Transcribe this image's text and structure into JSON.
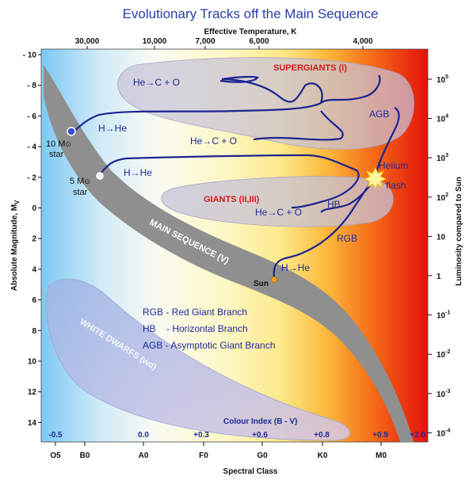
{
  "title": "Evolutionary Tracks off the Main Sequence",
  "top_axis": {
    "label": "Effective Temperature, K",
    "ticks": [
      "30,000",
      "10,000",
      "7,000",
      "6,000",
      "4,000"
    ]
  },
  "left_axis": {
    "label_main": "Absolute Magnitude, M",
    "label_sub": "V",
    "ticks": [
      "- 10",
      "- 8",
      "- 6",
      "- 4",
      "- 2",
      "0",
      "2",
      "4",
      "6",
      "8",
      "10",
      "12",
      "14"
    ]
  },
  "right_axis": {
    "label": "Luminosity compared to Sun",
    "ticks": [
      {
        "base": "10",
        "exp": "5"
      },
      {
        "base": "10",
        "exp": "4"
      },
      {
        "base": "10",
        "exp": "3"
      },
      {
        "base": "10",
        "exp": "2"
      },
      {
        "base": "10",
        "exp": ""
      },
      {
        "base": "1",
        "exp": ""
      },
      {
        "base": "10",
        "exp": "-1"
      },
      {
        "base": "10",
        "exp": "-2"
      },
      {
        "base": "10",
        "exp": "-3"
      },
      {
        "base": "10",
        "exp": "-4"
      }
    ]
  },
  "bottom_axis": {
    "label": "Spectral Class",
    "ticks": [
      "O5",
      "B0",
      "A0",
      "F0",
      "G0",
      "K0",
      "M0"
    ]
  },
  "colour_index": {
    "label": "Colour Index (B - V)",
    "values": [
      "-0.5",
      "0.0",
      "+0.3",
      "+0.6",
      "+0.8",
      "+0.9",
      "+2.0"
    ]
  },
  "regions": {
    "main_sequence": "MAIN SEQUENCE (V)",
    "supergiants": "SUPERGIANTS (I)",
    "giants": "GIANTS (II,III)",
    "white_dwarfs": "WHITE DWARFS (wd)"
  },
  "stars": {
    "ten_solar": {
      "label": "10 M",
      "sub": "⊙",
      "line2": "star"
    },
    "five_solar": {
      "label": "5 M",
      "sub": "⊙",
      "line2": "star"
    },
    "sun": "Sun"
  },
  "track_labels": {
    "h_he_10": "H→He",
    "h_he_5": "H→He",
    "h_he_sun": "H→He",
    "he_c_o_top": "He→C + O",
    "he_c_o_mid": "He→C + O",
    "he_c_o_giant": "He→C + O",
    "agb": "AGB",
    "hb": "HB",
    "rgb": "RGB",
    "helium_flash_1": "Helium",
    "helium_flash_2": "flash"
  },
  "legend": [
    "RGB - Red Giant Branch",
    "HB    - Horizontal Branch",
    "AGB - Asymptotic Giant Branch"
  ],
  "colors": {
    "title": "#2a3ea8",
    "track": "#1c2490",
    "region_label": "#d11a1a",
    "main_sequence": "#8f8f8f",
    "background_hot": "#7ec8f2",
    "background_cool": "#e8140c"
  }
}
